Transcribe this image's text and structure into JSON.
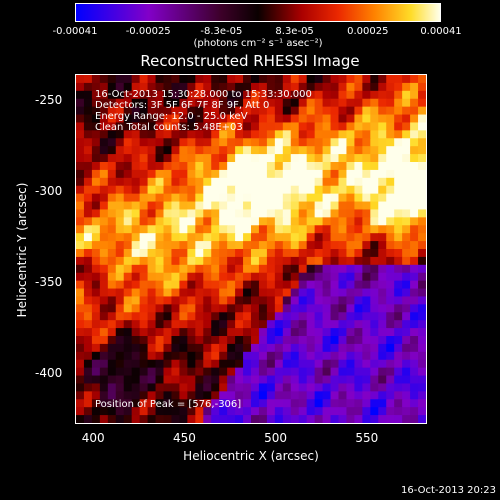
{
  "chart_data": {
    "type": "heatmap",
    "title": "Reconstructed RHESSI Image",
    "xlabel": "Heliocentric X (arcsec)",
    "ylabel": "Heliocentric Y (arcsec)",
    "xlim": [
      390,
      583
    ],
    "ylim": [
      -428,
      -236
    ],
    "x_ticks": [
      400,
      450,
      500,
      550
    ],
    "y_ticks": [
      -250,
      -300,
      -350,
      -400
    ],
    "colorbar": {
      "ticks": [
        "-0.00041",
        "-0.00025",
        "-8.3e-05",
        "8.3e-05",
        "0.00025",
        "0.00041"
      ],
      "unit": "(photons cm⁻² s⁻¹ asec⁻²)",
      "range": [
        -0.00041,
        0.00041
      ]
    },
    "annotations": [
      "16-Oct-2013 15:30:28.000 to 15:33:30.000",
      "Detectors: 3F 5F 6F 7F 8F 9F, Att 0",
      "Energy Range: 12.0 - 25.0 keV",
      "Clean     Total counts: 5.48E+03"
    ],
    "peak_label": "Position of Peak = [576,-306]",
    "peak": [
      576,
      -306
    ],
    "footer": "16-Oct-2013 20:23"
  }
}
